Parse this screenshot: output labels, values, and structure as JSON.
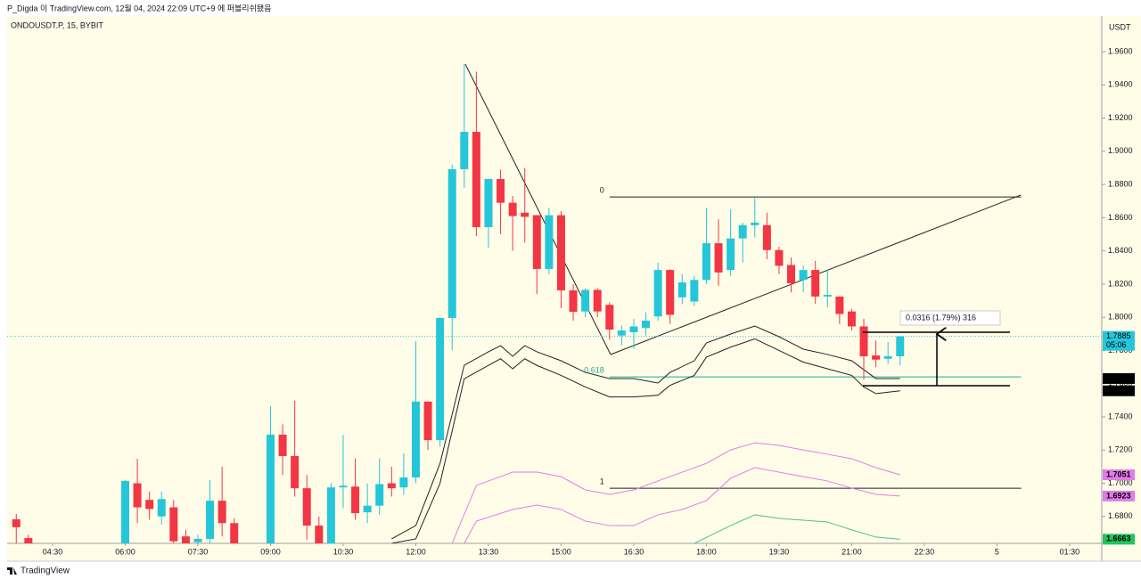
{
  "header": "P_Digda 이 TradingView.com, 12월 04, 2024 22:09 UTC+9 에 퍼블리쉬됐음",
  "footer": "TradingView",
  "chart_data": {
    "type": "candlestick",
    "title": "ONDOUSDT.P, 15, BYBIT",
    "currency": "USDT",
    "up_color": "#26c6da",
    "down_color": "#f23645",
    "xlim": [
      3.414,
      26.164
    ],
    "ylim": [
      1.6638,
      1.9831
    ],
    "xticks": [
      {
        "value": 4.5,
        "label": "04:30"
      },
      {
        "value": 6,
        "label": "06:00"
      },
      {
        "value": 7.5,
        "label": "07:30"
      },
      {
        "value": 9,
        "label": "09:00"
      },
      {
        "value": 10.5,
        "label": "10:30"
      },
      {
        "value": 12,
        "label": "12:00"
      },
      {
        "value": 13.5,
        "label": "13:30"
      },
      {
        "value": 15,
        "label": "15:00"
      },
      {
        "value": 16.5,
        "label": "16:30"
      },
      {
        "value": 18,
        "label": "18:00"
      },
      {
        "value": 19.5,
        "label": "19:30"
      },
      {
        "value": 21,
        "label": "21:00"
      },
      {
        "value": 22.5,
        "label": "22:30"
      },
      {
        "value": 24,
        "label": "5"
      },
      {
        "value": 25.5,
        "label": "01:30"
      }
    ],
    "yticks": [
      {
        "value": 1.68,
        "label": "1.6800"
      },
      {
        "value": 1.7,
        "label": "1.7000"
      },
      {
        "value": 1.72,
        "label": "1.7200"
      },
      {
        "value": 1.74,
        "label": "1.7400"
      },
      {
        "value": 1.76,
        "label": "1.7600"
      },
      {
        "value": 1.78,
        "label": "1.7800"
      },
      {
        "value": 1.8,
        "label": "1.8000"
      },
      {
        "value": 1.82,
        "label": "1.8200"
      },
      {
        "value": 1.84,
        "label": "1.8400"
      },
      {
        "value": 1.86,
        "label": "1.8600"
      },
      {
        "value": 1.88,
        "label": "1.8800"
      },
      {
        "value": 1.9,
        "label": "1.9000"
      },
      {
        "value": 1.92,
        "label": "1.9200"
      },
      {
        "value": 1.94,
        "label": "1.9400"
      },
      {
        "value": 1.96,
        "label": "1.9600"
      }
    ],
    "x": [
      3.75,
      4,
      6,
      6.25,
      6.5,
      6.75,
      7,
      7.25,
      7.5,
      7.75,
      8,
      8.25,
      9,
      9.25,
      9.5,
      9.75,
      10,
      10.25,
      10.5,
      10.75,
      11,
      11.25,
      11.5,
      11.75,
      12,
      12.25,
      12.5,
      12.75,
      13,
      13.25,
      13.5,
      13.75,
      14,
      14.25,
      14.5,
      14.75,
      15,
      15.25,
      15.5,
      15.75,
      16,
      16.25,
      16.5,
      16.75,
      17,
      17.25,
      17.5,
      17.75,
      18,
      18.25,
      18.5,
      18.75,
      19,
      19.25,
      19.5,
      19.75,
      20,
      20.25,
      20.5,
      20.75,
      21,
      21.25,
      21.5,
      21.75,
      22
    ],
    "ohlc": [
      [
        1.6783,
        1.6815,
        1.6638,
        1.6735
      ],
      [
        1.667,
        1.669,
        1.66,
        1.662
      ],
      [
        1.66,
        1.702,
        1.655,
        1.7014
      ],
      [
        1.7,
        1.7148,
        1.676,
        1.6855
      ],
      [
        1.69,
        1.695,
        1.678,
        1.6845
      ],
      [
        1.68,
        1.695,
        1.675,
        1.6905
      ],
      [
        1.6855,
        1.69,
        1.655,
        1.665
      ],
      [
        1.668,
        1.672,
        1.655,
        1.66
      ],
      [
        1.6645,
        1.669,
        1.66,
        1.6665
      ],
      [
        1.6665,
        1.702,
        1.664,
        1.6895
      ],
      [
        1.6895,
        1.71,
        1.668,
        1.676
      ],
      [
        1.676,
        1.679,
        1.655,
        1.66
      ],
      [
        1.658,
        1.7464,
        1.655,
        1.7293
      ],
      [
        1.7293,
        1.7355,
        1.705,
        1.7164
      ],
      [
        1.7164,
        1.7497,
        1.692,
        1.697
      ],
      [
        1.697,
        1.705,
        1.666,
        1.6745
      ],
      [
        1.6745,
        1.68,
        1.655,
        1.662
      ],
      [
        1.662,
        1.7,
        1.66,
        1.6975
      ],
      [
        1.6975,
        1.729,
        1.685,
        1.6985
      ],
      [
        1.698,
        1.715,
        1.678,
        1.682
      ],
      [
        1.6825,
        1.7,
        1.676,
        1.6865
      ],
      [
        1.6865,
        1.715,
        1.681,
        1.6995
      ],
      [
        1.7,
        1.71,
        1.692,
        1.697
      ],
      [
        1.6975,
        1.718,
        1.693,
        1.7035
      ],
      [
        1.7035,
        1.7856,
        1.7,
        1.7492
      ],
      [
        1.7492,
        1.7495,
        1.72,
        1.726
      ],
      [
        1.726,
        1.8,
        1.722,
        1.7996
      ],
      [
        1.7996,
        1.892,
        1.78,
        1.8892
      ],
      [
        1.8892,
        1.9525,
        1.878,
        1.9117
      ],
      [
        1.9117,
        1.948,
        1.849,
        1.8543
      ],
      [
        1.8543,
        1.8835,
        1.842,
        1.8833
      ],
      [
        1.8833,
        1.889,
        1.85,
        1.869
      ],
      [
        1.869,
        1.873,
        1.84,
        1.861
      ],
      [
        1.863,
        1.89,
        1.845,
        1.8605
      ],
      [
        1.8615,
        1.8615,
        1.814,
        1.8291
      ],
      [
        1.8291,
        1.866,
        1.826,
        1.8615
      ],
      [
        1.8615,
        1.864,
        1.8055,
        1.8162
      ],
      [
        1.8162,
        1.82,
        1.798,
        1.8033
      ],
      [
        1.8035,
        1.8175,
        1.8,
        1.8165
      ],
      [
        1.8165,
        1.8175,
        1.8,
        1.8035
      ],
      [
        1.8075,
        1.809,
        1.7865,
        1.7926
      ],
      [
        1.789,
        1.795,
        1.783,
        1.792
      ],
      [
        1.791,
        1.799,
        1.781,
        1.7945
      ],
      [
        1.7935,
        1.803,
        1.789,
        1.798
      ],
      [
        1.8005,
        1.833,
        1.798,
        1.8285
      ],
      [
        1.8285,
        1.829,
        1.796,
        1.8015
      ],
      [
        1.812,
        1.826,
        1.808,
        1.821
      ],
      [
        1.8095,
        1.825,
        1.807,
        1.8225
      ],
      [
        1.8225,
        1.866,
        1.82,
        1.8446
      ],
      [
        1.8446,
        1.859,
        1.819,
        1.827
      ],
      [
        1.8285,
        1.865,
        1.825,
        1.8475
      ],
      [
        1.8475,
        1.857,
        1.833,
        1.8555
      ],
      [
        1.8555,
        1.872,
        1.848,
        1.857
      ],
      [
        1.8555,
        1.863,
        1.835,
        1.8405
      ],
      [
        1.8405,
        1.8425,
        1.826,
        1.831
      ],
      [
        1.8315,
        1.836,
        1.815,
        1.8205
      ],
      [
        1.8225,
        1.831,
        1.815,
        1.8285
      ],
      [
        1.8285,
        1.834,
        1.808,
        1.8125
      ],
      [
        1.8125,
        1.829,
        1.806,
        1.8135
      ],
      [
        1.8125,
        1.8125,
        1.796,
        1.802
      ],
      [
        1.8035,
        1.805,
        1.792,
        1.7945
      ],
      [
        1.7945,
        1.799,
        1.7625,
        1.7765
      ],
      [
        1.777,
        1.786,
        1.77,
        1.7745
      ],
      [
        1.775,
        1.785,
        1.772,
        1.7765
      ],
      [
        1.7765,
        1.7885,
        1.771,
        1.7885
      ]
    ],
    "last_price": {
      "value": 1.7885,
      "label": "1.7885"
    },
    "countdown": "05:06",
    "lines": [
      {
        "color": "#222222",
        "label_color": "#000000",
        "end_label": "1.7631",
        "x": [
          11.5,
          12,
          12.5,
          13,
          13.5,
          13.75,
          14,
          14.25,
          14.5,
          15,
          15.5,
          16,
          16.5,
          17,
          17.25,
          17.75,
          18,
          18.5,
          19,
          19.5,
          20,
          20.5,
          21,
          21.25,
          21.5,
          22
        ],
        "values": [
          1.6665,
          1.6745,
          1.712,
          1.7711,
          1.7792,
          1.7829,
          1.7765,
          1.7829,
          1.7792,
          1.7738,
          1.7668,
          1.7631,
          1.7631,
          1.7604,
          1.7668,
          1.7738,
          1.7845,
          1.7899,
          1.7947,
          1.7883,
          1.7808,
          1.7776,
          1.7738,
          1.7684,
          1.7631,
          1.7631
        ]
      },
      {
        "color": "#222222",
        "label_color": "#000000",
        "end_label": "1.7557",
        "x": [
          11.5,
          12,
          12.5,
          13,
          13.5,
          13.75,
          14,
          14.25,
          14.5,
          15,
          15.5,
          16,
          16.5,
          17,
          17.25,
          17.75,
          18,
          18.5,
          19,
          19.5,
          20,
          20.5,
          21,
          21.25,
          21.5,
          22
        ],
        "values": [
          1.6638,
          1.6665,
          1.7,
          1.763,
          1.771,
          1.775,
          1.769,
          1.775,
          1.771,
          1.765,
          1.758,
          1.752,
          1.752,
          1.753,
          1.759,
          1.765,
          1.776,
          1.782,
          1.787,
          1.78,
          1.773,
          1.769,
          1.765,
          1.758,
          1.754,
          1.7557
        ]
      },
      {
        "color": "#e07ce8",
        "label_color": "#e07ce8",
        "end_label": "1.7051",
        "x": [
          12.75,
          13.25,
          14,
          14.5,
          15,
          15.5,
          16,
          16.5,
          17,
          17.5,
          18,
          18.5,
          19,
          19.5,
          20,
          20.5,
          21,
          21.5,
          22
        ],
        "values": [
          1.6638,
          1.6987,
          1.7067,
          1.7067,
          1.704,
          1.696,
          1.6933,
          1.696,
          1.7014,
          1.7067,
          1.712,
          1.7201,
          1.7244,
          1.7228,
          1.7201,
          1.7175,
          1.7148,
          1.7094,
          1.7051
        ]
      },
      {
        "color": "#e07ce8",
        "label_color": "#e07ce8",
        "end_label": "1.6923",
        "x": [
          13,
          13.25,
          14,
          14.5,
          15,
          15.5,
          16,
          16.5,
          17,
          17.5,
          18,
          18.5,
          19,
          19.5,
          20,
          20.5,
          21,
          21.5,
          22
        ],
        "values": [
          1.6638,
          1.6772,
          1.6842,
          1.6869,
          1.6842,
          1.6772,
          1.6745,
          1.6745,
          1.681,
          1.6842,
          1.6896,
          1.703,
          1.7094,
          1.7067,
          1.704,
          1.7014,
          1.6971,
          1.6933,
          1.6923
        ]
      },
      {
        "color": "#4cc38a",
        "label_color": "#22c55e",
        "end_label": "1.6663",
        "x": [
          17.75,
          18.5,
          19,
          19.5,
          20.5,
          21,
          21.5,
          22
        ],
        "values": [
          1.6638,
          1.6745,
          1.681,
          1.6788,
          1.6767,
          1.6719,
          1.6676,
          1.6663
        ]
      }
    ],
    "fib": {
      "levels": [
        0,
        0.618,
        1
      ],
      "prices": [
        1.8725,
        1.7641,
        1.697
      ],
      "colors": [
        "#222222",
        "#26a69a",
        "#222222"
      ],
      "x": [
        16,
        24.5
      ]
    },
    "measure_label": "0.0316 (1.79%) 316"
  }
}
